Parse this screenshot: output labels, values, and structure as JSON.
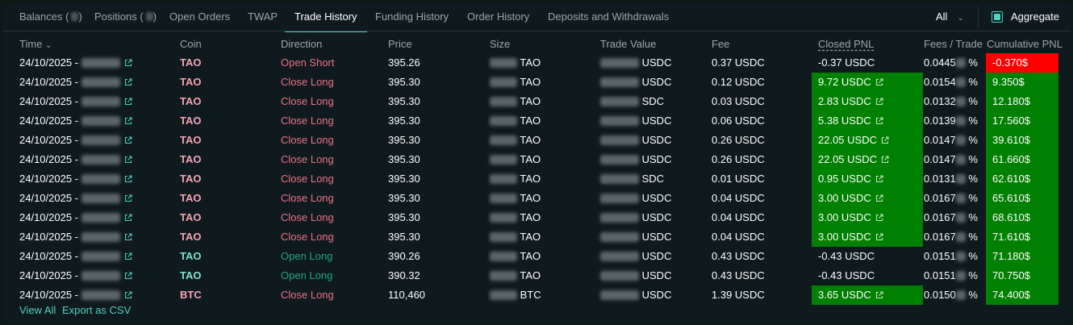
{
  "tabs": [
    {
      "label": "Balances",
      "has_count": true
    },
    {
      "label": "Positions",
      "has_count": true
    },
    {
      "label": "Open Orders"
    },
    {
      "label": "TWAP"
    },
    {
      "label": "Trade History",
      "active": true
    },
    {
      "label": "Funding History"
    },
    {
      "label": "Order History"
    },
    {
      "label": "Deposits and Withdrawals"
    }
  ],
  "filter": {
    "value": "All"
  },
  "aggregate": {
    "label": "Aggregate",
    "checked": true
  },
  "columns": {
    "time": "Time",
    "coin": "Coin",
    "direction": "Direction",
    "price": "Price",
    "size": "Size",
    "trade_value": "Trade Value",
    "fee": "Fee",
    "closed_pnl": "Closed PNL",
    "fees_trade": "Fees / Trade",
    "cumulative_pnl": "Cumulative PNL"
  },
  "rows": [
    {
      "date": "24/10/2025 -",
      "coin": "TAO",
      "direction": "Open Short",
      "price": "395.26",
      "size_unit": "TAO",
      "value_unit": "USDC",
      "fee": "0.37 USDC",
      "closed_pnl": "-0.37 USDC",
      "pnl_positive": false,
      "fees_trade_prefix": "0.0445",
      "fees_trade_suffix": "%",
      "cumulative": "-0.370$",
      "cum_positive": false
    },
    {
      "date": "24/10/2025 -",
      "coin": "TAO",
      "direction": "Close Long",
      "price": "395.30",
      "size_unit": "TAO",
      "value_unit": "USDC",
      "fee": "0.12 USDC",
      "closed_pnl": "9.72 USDC",
      "pnl_positive": true,
      "fees_trade_prefix": "0.0154",
      "fees_trade_suffix": "%",
      "cumulative": "9.350$",
      "cum_positive": true
    },
    {
      "date": "24/10/2025 -",
      "coin": "TAO",
      "direction": "Close Long",
      "price": "395.30",
      "size_unit": "TAO",
      "value_unit": "SDC",
      "fee": "0.03 USDC",
      "closed_pnl": "2.83 USDC",
      "pnl_positive": true,
      "fees_trade_prefix": "0.0132",
      "fees_trade_suffix": "%",
      "cumulative": "12.180$",
      "cum_positive": true
    },
    {
      "date": "24/10/2025 -",
      "coin": "TAO",
      "direction": "Close Long",
      "price": "395.30",
      "size_unit": "TAO",
      "value_unit": "USDC",
      "fee": "0.06 USDC",
      "closed_pnl": "5.38 USDC",
      "pnl_positive": true,
      "fees_trade_prefix": "0.0139",
      "fees_trade_suffix": "%",
      "cumulative": "17.560$",
      "cum_positive": true
    },
    {
      "date": "24/10/2025 -",
      "coin": "TAO",
      "direction": "Close Long",
      "price": "395.30",
      "size_unit": "TAO",
      "value_unit": "USDC",
      "fee": "0.26 USDC",
      "closed_pnl": "22.05 USDC",
      "pnl_positive": true,
      "fees_trade_prefix": "0.0147",
      "fees_trade_suffix": "%",
      "cumulative": "39.610$",
      "cum_positive": true
    },
    {
      "date": "24/10/2025 -",
      "coin": "TAO",
      "direction": "Close Long",
      "price": "395.30",
      "size_unit": "TAO",
      "value_unit": "USDC",
      "fee": "0.26 USDC",
      "closed_pnl": "22.05 USDC",
      "pnl_positive": true,
      "fees_trade_prefix": "0.0147",
      "fees_trade_suffix": "%",
      "cumulative": "61.660$",
      "cum_positive": true
    },
    {
      "date": "24/10/2025 -",
      "coin": "TAO",
      "direction": "Close Long",
      "price": "395.30",
      "size_unit": "TAO",
      "value_unit": "SDC",
      "fee": "0.01 USDC",
      "closed_pnl": "0.95 USDC",
      "pnl_positive": true,
      "fees_trade_prefix": "0.0131",
      "fees_trade_suffix": "%",
      "cumulative": "62.610$",
      "cum_positive": true
    },
    {
      "date": "24/10/2025 -",
      "coin": "TAO",
      "direction": "Close Long",
      "price": "395.30",
      "size_unit": "TAO",
      "value_unit": "USDC",
      "fee": "0.04 USDC",
      "closed_pnl": "3.00 USDC",
      "pnl_positive": true,
      "fees_trade_prefix": "0.0167",
      "fees_trade_suffix": "%",
      "cumulative": "65.610$",
      "cum_positive": true
    },
    {
      "date": "24/10/2025 -",
      "coin": "TAO",
      "direction": "Close Long",
      "price": "395.30",
      "size_unit": "TAO",
      "value_unit": "USDC",
      "fee": "0.04 USDC",
      "closed_pnl": "3.00 USDC",
      "pnl_positive": true,
      "fees_trade_prefix": "0.0167",
      "fees_trade_suffix": "%",
      "cumulative": "68.610$",
      "cum_positive": true
    },
    {
      "date": "24/10/2025 -",
      "coin": "TAO",
      "direction": "Close Long",
      "price": "395.30",
      "size_unit": "TAO",
      "value_unit": "USDC",
      "fee": "0.04 USDC",
      "closed_pnl": "3.00 USDC",
      "pnl_positive": true,
      "fees_trade_prefix": "0.0167",
      "fees_trade_suffix": "%",
      "cumulative": "71.610$",
      "cum_positive": true
    },
    {
      "date": "24/10/2025 -",
      "coin": "TAO",
      "direction": "Open Long",
      "price": "390.26",
      "size_unit": "TAO",
      "value_unit": "USDC",
      "fee": "0.43 USDC",
      "closed_pnl": "-0.43 USDC",
      "pnl_positive": false,
      "fees_trade_prefix": "0.0151",
      "fees_trade_suffix": "%",
      "cumulative": "71.180$",
      "cum_positive": true
    },
    {
      "date": "24/10/2025 -",
      "coin": "TAO",
      "direction": "Open Long",
      "price": "390.32",
      "size_unit": "TAO",
      "value_unit": "USDC",
      "fee": "0.43 USDC",
      "closed_pnl": "-0.43 USDC",
      "pnl_positive": false,
      "fees_trade_prefix": "0.0151",
      "fees_trade_suffix": "%",
      "cumulative": "70.750$",
      "cum_positive": true
    },
    {
      "date": "24/10/2025 -",
      "coin": "BTC",
      "direction": "Close Long",
      "price": "110,460",
      "size_unit": "BTC",
      "value_unit": "USDC",
      "fee": "1.39 USDC",
      "closed_pnl": "3.65 USDC",
      "pnl_positive": true,
      "fees_trade_prefix": "0.0150",
      "fees_trade_suffix": "%",
      "cumulative": "74.400$",
      "cum_positive": true
    }
  ],
  "footer": {
    "view_all": "View All",
    "export": "Export as CSV"
  },
  "colors": {
    "accent": "#50d2c1",
    "positive_bg": "#008000",
    "negative_bg": "#ff0000",
    "sell_text": "#ed7088",
    "buy_text": "#1fa67d"
  }
}
